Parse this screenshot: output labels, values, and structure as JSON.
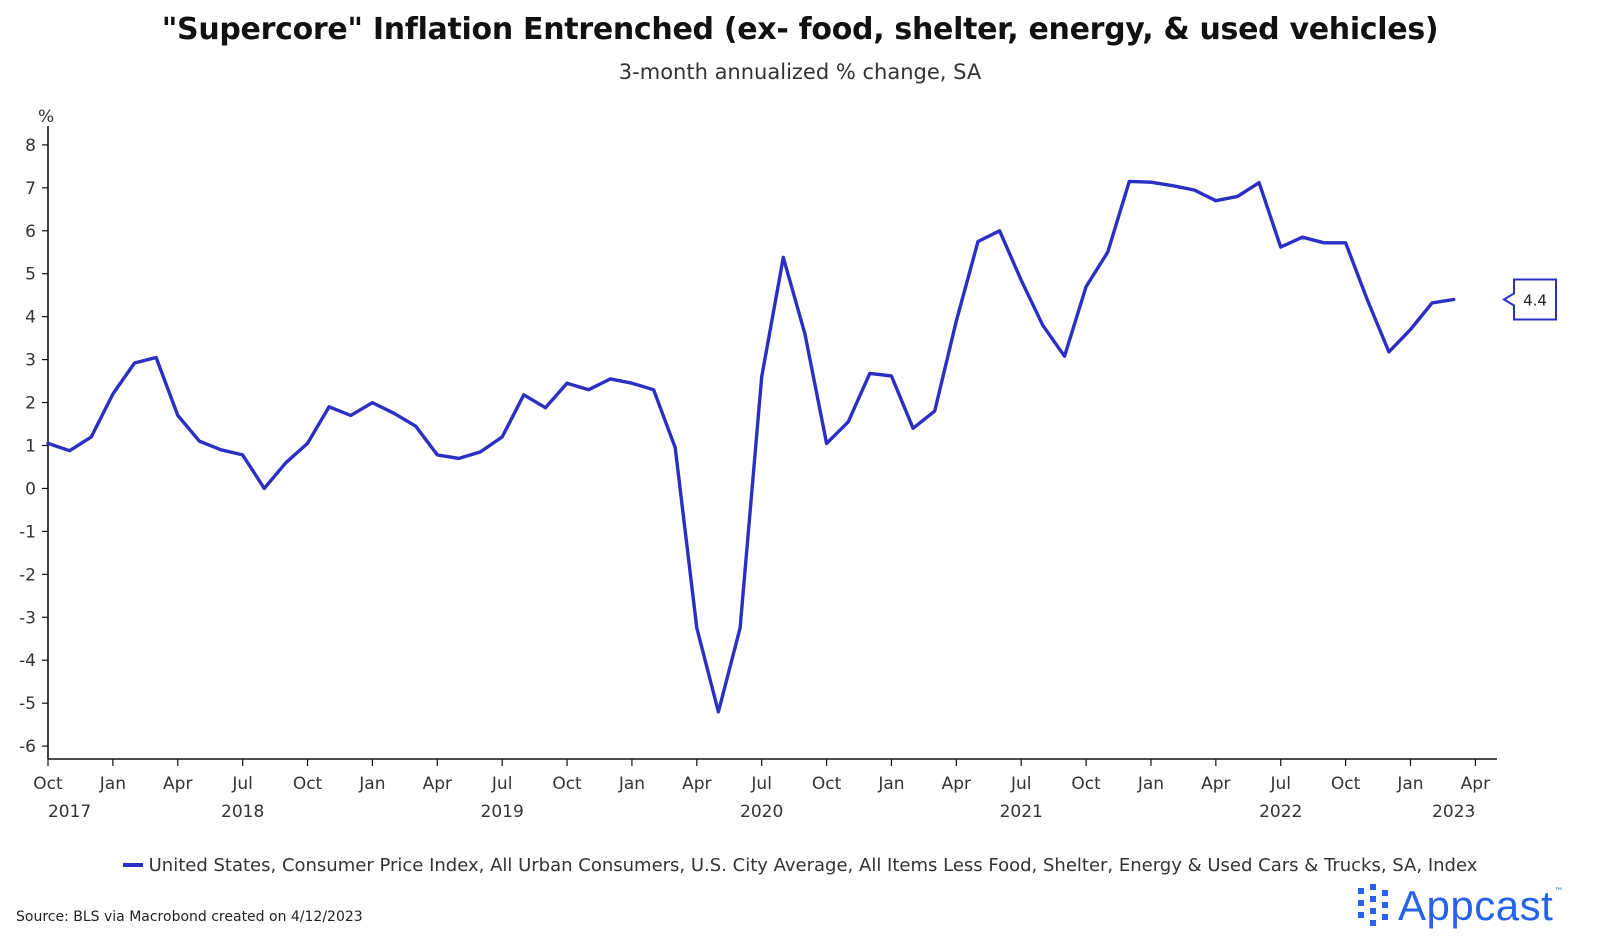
{
  "chart_data": {
    "type": "line",
    "title": "\"Supercore\" Inflation Entrenched (ex- food, shelter, energy, & used vehicles)",
    "subtitle": "3-month annualized % change, SA",
    "ylabel": "%",
    "ylim": [
      -6.3,
      8.3
    ],
    "yticks": [
      8,
      7,
      6,
      5,
      4,
      3,
      2,
      1,
      0,
      -1,
      -2,
      -3,
      -4,
      -5,
      -6
    ],
    "xlim": [
      "2017-10",
      "2023-05"
    ],
    "x_month_ticks": [
      {
        "date": "2017-10",
        "label": "Oct"
      },
      {
        "date": "2018-01",
        "label": "Jan"
      },
      {
        "date": "2018-04",
        "label": "Apr"
      },
      {
        "date": "2018-07",
        "label": "Jul"
      },
      {
        "date": "2018-10",
        "label": "Oct"
      },
      {
        "date": "2019-01",
        "label": "Jan"
      },
      {
        "date": "2019-04",
        "label": "Apr"
      },
      {
        "date": "2019-07",
        "label": "Jul"
      },
      {
        "date": "2019-10",
        "label": "Oct"
      },
      {
        "date": "2020-01",
        "label": "Jan"
      },
      {
        "date": "2020-04",
        "label": "Apr"
      },
      {
        "date": "2020-07",
        "label": "Jul"
      },
      {
        "date": "2020-10",
        "label": "Oct"
      },
      {
        "date": "2021-01",
        "label": "Jan"
      },
      {
        "date": "2021-04",
        "label": "Apr"
      },
      {
        "date": "2021-07",
        "label": "Jul"
      },
      {
        "date": "2021-10",
        "label": "Oct"
      },
      {
        "date": "2022-01",
        "label": "Jan"
      },
      {
        "date": "2022-04",
        "label": "Apr"
      },
      {
        "date": "2022-07",
        "label": "Jul"
      },
      {
        "date": "2022-10",
        "label": "Oct"
      },
      {
        "date": "2023-01",
        "label": "Jan"
      },
      {
        "date": "2023-04",
        "label": "Apr"
      }
    ],
    "x_year_labels": [
      {
        "date": "2017-11",
        "label": "2017"
      },
      {
        "date": "2018-07",
        "label": "2018"
      },
      {
        "date": "2019-07",
        "label": "2019"
      },
      {
        "date": "2020-07",
        "label": "2020"
      },
      {
        "date": "2021-07",
        "label": "2021"
      },
      {
        "date": "2022-07",
        "label": "2022"
      },
      {
        "date": "2023-03",
        "label": "2023"
      }
    ],
    "grid": false,
    "legend_position": "bottom",
    "series": [
      {
        "name": "United States, Consumer Price Index, All Urban Consumers, U.S. City Average, All Items Less Food, Shelter, Energy & Used Cars & Trucks, SA, Index",
        "color": "#2b2fc4",
        "last_value_label": "4.4",
        "x": [
          "2017-10",
          "2017-11",
          "2017-12",
          "2018-01",
          "2018-02",
          "2018-03",
          "2018-04",
          "2018-05",
          "2018-06",
          "2018-07",
          "2018-08",
          "2018-09",
          "2018-10",
          "2018-11",
          "2018-12",
          "2019-01",
          "2019-02",
          "2019-03",
          "2019-04",
          "2019-05",
          "2019-06",
          "2019-07",
          "2019-08",
          "2019-09",
          "2019-10",
          "2019-11",
          "2019-12",
          "2020-01",
          "2020-02",
          "2020-03",
          "2020-04",
          "2020-05",
          "2020-06",
          "2020-07",
          "2020-08",
          "2020-09",
          "2020-10",
          "2020-11",
          "2020-12",
          "2021-01",
          "2021-02",
          "2021-03",
          "2021-04",
          "2021-05",
          "2021-06",
          "2021-07",
          "2021-08",
          "2021-09",
          "2021-10",
          "2021-11",
          "2021-12",
          "2022-01",
          "2022-02",
          "2022-03",
          "2022-04",
          "2022-05",
          "2022-06",
          "2022-07",
          "2022-08",
          "2022-09",
          "2022-10",
          "2022-11",
          "2022-12",
          "2023-01",
          "2023-02",
          "2023-03"
        ],
        "values": [
          1.05,
          0.88,
          1.2,
          2.2,
          2.92,
          3.05,
          1.7,
          1.1,
          0.9,
          0.78,
          0.0,
          0.6,
          1.05,
          1.9,
          1.7,
          2.0,
          1.75,
          1.45,
          0.78,
          0.7,
          0.85,
          1.2,
          2.18,
          1.88,
          2.45,
          2.3,
          2.55,
          2.45,
          2.3,
          0.95,
          -3.25,
          -5.2,
          -3.25,
          2.6,
          5.38,
          3.6,
          1.05,
          1.55,
          2.68,
          2.62,
          1.4,
          1.8,
          3.9,
          5.75,
          6.0,
          4.85,
          3.8,
          3.08,
          4.7,
          5.5,
          7.15,
          7.13,
          7.05,
          6.95,
          6.7,
          6.8,
          7.12,
          5.62,
          5.85,
          5.72,
          5.72,
          4.4,
          3.18,
          3.7,
          4.32,
          4.4
        ]
      }
    ],
    "source": "Source: BLS via Macrobond created on 4/12/2023",
    "brand": "Appcast"
  }
}
